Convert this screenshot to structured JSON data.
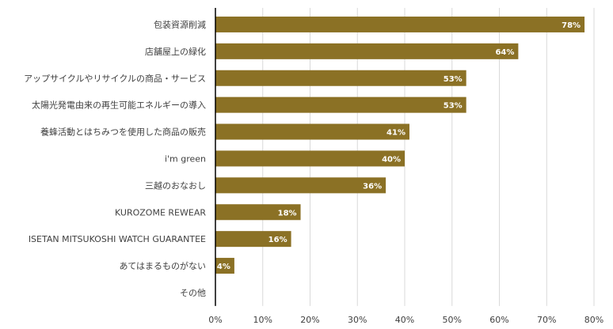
{
  "chart_data": {
    "type": "bar",
    "orientation": "horizontal",
    "categories": [
      "包装資源削減",
      "店舗屋上の緑化",
      "アップサイクルやリサイクルの商品・サービス",
      "太陽光発電由来の再生可能エネルギーの導入",
      "養蜂活動とはちみつを使用した商品の販売",
      "i'm green",
      "三越のおなおし",
      "KUROZOME REWEAR",
      "ISETAN MITSUKOSHI WATCH GUARANTEE",
      "あてはまるものがない",
      "その他"
    ],
    "values": [
      78,
      64,
      53,
      53,
      41,
      40,
      36,
      18,
      16,
      4,
      0
    ],
    "data_labels": [
      "78%",
      "64%",
      "53%",
      "53%",
      "41%",
      "40%",
      "36%",
      "18%",
      "16%",
      "4%",
      ""
    ],
    "xlim": [
      0,
      80
    ],
    "x_ticks": [
      "0%",
      "10%",
      "20%",
      "30%",
      "40%",
      "50%",
      "60%",
      "70%",
      "80%"
    ],
    "grid": "vertical",
    "bar_color": "#8B7125",
    "label_color": "#ffffff"
  }
}
